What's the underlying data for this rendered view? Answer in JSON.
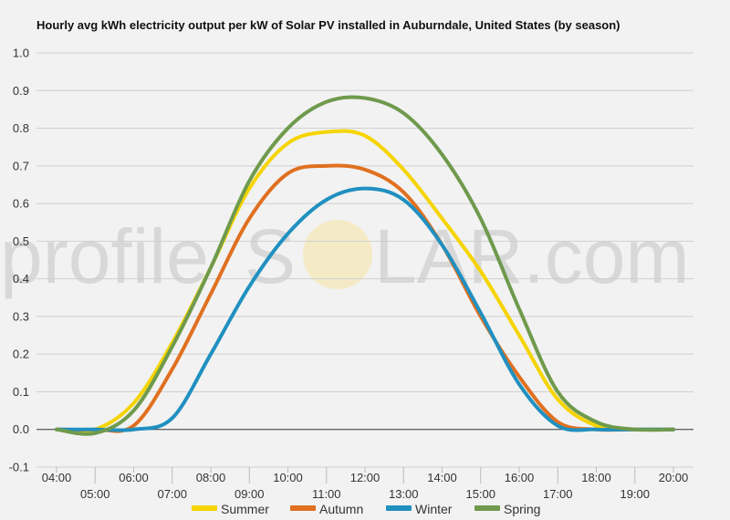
{
  "chart_data": {
    "type": "line",
    "title": "Hourly avg kWh electricity output per kW of Solar PV installed in Auburndale, United States (by season)",
    "xlabel": "",
    "ylabel": "",
    "x": [
      "04:00",
      "05:00",
      "06:00",
      "07:00",
      "08:00",
      "09:00",
      "10:00",
      "11:00",
      "12:00",
      "13:00",
      "14:00",
      "15:00",
      "16:00",
      "17:00",
      "18:00",
      "19:00",
      "20:00"
    ],
    "ylim": [
      -0.1,
      1.0
    ],
    "yticks": [
      "-0.1",
      "0.0",
      "0.1",
      "0.2",
      "0.3",
      "0.4",
      "0.5",
      "0.6",
      "0.7",
      "0.8",
      "0.9",
      "1.0"
    ],
    "grid": true,
    "legend_position": "bottom",
    "series": [
      {
        "name": "Summer",
        "color": "#f5d400",
        "values": [
          0.0,
          0.0,
          0.07,
          0.23,
          0.43,
          0.64,
          0.76,
          0.79,
          0.78,
          0.69,
          0.56,
          0.42,
          0.25,
          0.08,
          0.01,
          0.0,
          0.0
        ]
      },
      {
        "name": "Autumn",
        "color": "#e07020",
        "values": [
          0.0,
          0.0,
          0.01,
          0.16,
          0.36,
          0.56,
          0.68,
          0.7,
          0.69,
          0.63,
          0.49,
          0.3,
          0.14,
          0.02,
          0.0,
          0.0,
          0.0
        ]
      },
      {
        "name": "Winter",
        "color": "#2090c0",
        "values": [
          0.0,
          0.0,
          0.0,
          0.03,
          0.2,
          0.38,
          0.52,
          0.61,
          0.64,
          0.61,
          0.49,
          0.31,
          0.12,
          0.01,
          0.0,
          0.0,
          0.0
        ]
      },
      {
        "name": "Spring",
        "color": "#6f9a4d",
        "values": [
          0.0,
          -0.01,
          0.05,
          0.22,
          0.43,
          0.66,
          0.8,
          0.87,
          0.88,
          0.84,
          0.73,
          0.56,
          0.32,
          0.1,
          0.02,
          0.0,
          0.0
        ]
      }
    ]
  },
  "watermark": {
    "text_left": "profile",
    "text_mid": "S",
    "text_right": "LAR.com",
    "sun_color": "#f6e3a0"
  }
}
